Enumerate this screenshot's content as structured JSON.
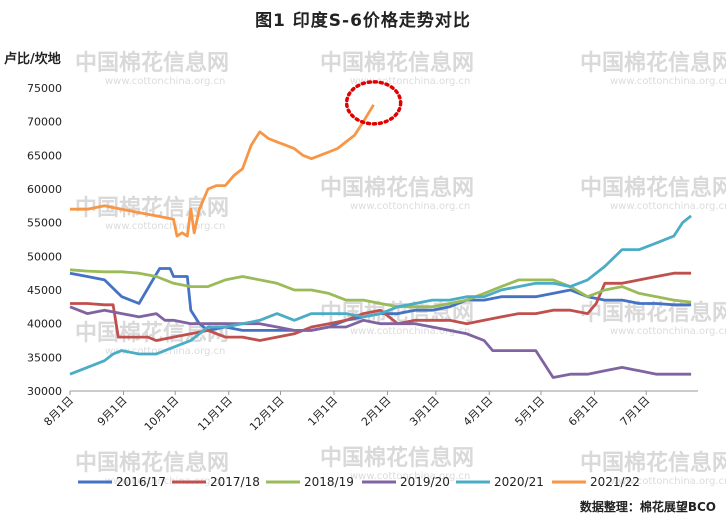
{
  "chart_data": {
    "type": "line",
    "title": "图1 印度S-6价格走势对比",
    "ylabel": "卢比/坎地",
    "xlabel": "",
    "ylim": [
      30000,
      75000
    ],
    "yticks": [
      30000,
      35000,
      40000,
      45000,
      50000,
      55000,
      60000,
      65000,
      70000,
      75000
    ],
    "x_tick_labels": [
      "8月1日",
      "9月1日",
      "10月1日",
      "11月1日",
      "12月1日",
      "1月1日",
      "2月1日",
      "3月1日",
      "4月1日",
      "5月1日",
      "6月1日",
      "7月1日"
    ],
    "x_tick_days": [
      0,
      31,
      61,
      92,
      122,
      153,
      184,
      212,
      243,
      273,
      304,
      334
    ],
    "xlim_days": [
      0,
      364
    ],
    "legend_position": "bottom",
    "source": "数据整理：棉花展望BCO",
    "watermark": {
      "text": "中国棉花信息网",
      "sub": "www.cottonchina.org.cn"
    },
    "annotation": "dotted red circle around latest 2021/22 price",
    "series": [
      {
        "name": "2016/17",
        "color": "#4472C4",
        "points": [
          [
            0,
            47500
          ],
          [
            10,
            47000
          ],
          [
            20,
            46500
          ],
          [
            30,
            44000
          ],
          [
            40,
            43000
          ],
          [
            48,
            46500
          ],
          [
            52,
            48200
          ],
          [
            58,
            48200
          ],
          [
            60,
            47000
          ],
          [
            68,
            47000
          ],
          [
            70,
            42000
          ],
          [
            75,
            40000
          ],
          [
            80,
            39000
          ],
          [
            90,
            39500
          ],
          [
            100,
            39000
          ],
          [
            110,
            39000
          ],
          [
            120,
            39000
          ],
          [
            130,
            39000
          ],
          [
            140,
            39000
          ],
          [
            150,
            39500
          ],
          [
            160,
            40500
          ],
          [
            170,
            41000
          ],
          [
            180,
            41500
          ],
          [
            190,
            41500
          ],
          [
            200,
            42000
          ],
          [
            210,
            42000
          ],
          [
            220,
            42500
          ],
          [
            230,
            43500
          ],
          [
            240,
            43500
          ],
          [
            250,
            44000
          ],
          [
            260,
            44000
          ],
          [
            270,
            44000
          ],
          [
            280,
            44500
          ],
          [
            290,
            45000
          ],
          [
            300,
            44000
          ],
          [
            310,
            43500
          ],
          [
            320,
            43500
          ],
          [
            330,
            43000
          ],
          [
            340,
            43000
          ],
          [
            350,
            42800
          ],
          [
            360,
            42800
          ]
        ]
      },
      {
        "name": "2017/18",
        "color": "#C0504D",
        "points": [
          [
            0,
            43000
          ],
          [
            10,
            43000
          ],
          [
            20,
            42800
          ],
          [
            25,
            42800
          ],
          [
            28,
            38000
          ],
          [
            35,
            38000
          ],
          [
            45,
            38000
          ],
          [
            50,
            37500
          ],
          [
            60,
            38000
          ],
          [
            70,
            38500
          ],
          [
            80,
            39000
          ],
          [
            90,
            38000
          ],
          [
            100,
            38000
          ],
          [
            110,
            37500
          ],
          [
            120,
            38000
          ],
          [
            130,
            38500
          ],
          [
            140,
            39500
          ],
          [
            150,
            40000
          ],
          [
            160,
            40500
          ],
          [
            170,
            41500
          ],
          [
            180,
            42000
          ],
          [
            190,
            40000
          ],
          [
            200,
            40500
          ],
          [
            210,
            40500
          ],
          [
            220,
            40500
          ],
          [
            230,
            40000
          ],
          [
            240,
            40500
          ],
          [
            250,
            41000
          ],
          [
            260,
            41500
          ],
          [
            270,
            41500
          ],
          [
            280,
            42000
          ],
          [
            290,
            42000
          ],
          [
            300,
            41500
          ],
          [
            305,
            43000
          ],
          [
            310,
            46000
          ],
          [
            320,
            46000
          ],
          [
            330,
            46500
          ],
          [
            340,
            47000
          ],
          [
            350,
            47500
          ],
          [
            360,
            47500
          ]
        ]
      },
      {
        "name": "2018/19",
        "color": "#9BBB59",
        "points": [
          [
            0,
            48000
          ],
          [
            10,
            47800
          ],
          [
            20,
            47700
          ],
          [
            30,
            47700
          ],
          [
            40,
            47500
          ],
          [
            50,
            47000
          ],
          [
            60,
            46000
          ],
          [
            70,
            45500
          ],
          [
            80,
            45500
          ],
          [
            90,
            46500
          ],
          [
            100,
            47000
          ],
          [
            110,
            46500
          ],
          [
            120,
            46000
          ],
          [
            130,
            45000
          ],
          [
            140,
            45000
          ],
          [
            150,
            44500
          ],
          [
            160,
            43500
          ],
          [
            170,
            43500
          ],
          [
            180,
            43000
          ],
          [
            190,
            42500
          ],
          [
            200,
            42500
          ],
          [
            210,
            42500
          ],
          [
            220,
            43000
          ],
          [
            230,
            43500
          ],
          [
            240,
            44500
          ],
          [
            250,
            45500
          ],
          [
            260,
            46500
          ],
          [
            270,
            46500
          ],
          [
            280,
            46500
          ],
          [
            290,
            45500
          ],
          [
            300,
            44000
          ],
          [
            310,
            45000
          ],
          [
            320,
            45500
          ],
          [
            330,
            44500
          ],
          [
            340,
            44000
          ],
          [
            350,
            43500
          ],
          [
            360,
            43200
          ]
        ]
      },
      {
        "name": "2019/20",
        "color": "#8064A2",
        "points": [
          [
            0,
            42500
          ],
          [
            10,
            41500
          ],
          [
            20,
            42000
          ],
          [
            30,
            41500
          ],
          [
            40,
            41000
          ],
          [
            50,
            41500
          ],
          [
            55,
            40500
          ],
          [
            60,
            40500
          ],
          [
            70,
            40000
          ],
          [
            80,
            40000
          ],
          [
            90,
            40000
          ],
          [
            100,
            40000
          ],
          [
            110,
            40000
          ],
          [
            120,
            39500
          ],
          [
            130,
            39000
          ],
          [
            140,
            39000
          ],
          [
            150,
            39500
          ],
          [
            160,
            39500
          ],
          [
            170,
            40500
          ],
          [
            180,
            40000
          ],
          [
            190,
            40000
          ],
          [
            200,
            40000
          ],
          [
            210,
            39500
          ],
          [
            220,
            39000
          ],
          [
            230,
            38500
          ],
          [
            240,
            37500
          ],
          [
            245,
            36000
          ],
          [
            260,
            36000
          ],
          [
            270,
            36000
          ],
          [
            275,
            34000
          ],
          [
            280,
            32000
          ],
          [
            290,
            32500
          ],
          [
            300,
            32500
          ],
          [
            310,
            33000
          ],
          [
            320,
            33500
          ],
          [
            330,
            33000
          ],
          [
            340,
            32500
          ],
          [
            350,
            32500
          ],
          [
            360,
            32500
          ]
        ]
      },
      {
        "name": "2020/21",
        "color": "#4BACC6",
        "points": [
          [
            0,
            32500
          ],
          [
            10,
            33500
          ],
          [
            20,
            34500
          ],
          [
            25,
            35500
          ],
          [
            30,
            36000
          ],
          [
            40,
            35500
          ],
          [
            50,
            35500
          ],
          [
            60,
            36500
          ],
          [
            70,
            37500
          ],
          [
            80,
            39500
          ],
          [
            90,
            39500
          ],
          [
            100,
            40000
          ],
          [
            110,
            40500
          ],
          [
            120,
            41500
          ],
          [
            130,
            40500
          ],
          [
            140,
            41500
          ],
          [
            150,
            41500
          ],
          [
            160,
            41500
          ],
          [
            170,
            41000
          ],
          [
            180,
            41500
          ],
          [
            190,
            42500
          ],
          [
            200,
            43000
          ],
          [
            210,
            43500
          ],
          [
            220,
            43500
          ],
          [
            230,
            44000
          ],
          [
            240,
            44000
          ],
          [
            250,
            45000
          ],
          [
            260,
            45500
          ],
          [
            270,
            46000
          ],
          [
            280,
            46000
          ],
          [
            290,
            45500
          ],
          [
            300,
            46500
          ],
          [
            310,
            48500
          ],
          [
            320,
            51000
          ],
          [
            330,
            51000
          ],
          [
            340,
            52000
          ],
          [
            350,
            53000
          ],
          [
            355,
            55000
          ],
          [
            360,
            56000
          ]
        ]
      },
      {
        "name": "2021/22",
        "color": "#F79646",
        "points": [
          [
            0,
            57000
          ],
          [
            10,
            57000
          ],
          [
            20,
            57500
          ],
          [
            30,
            57000
          ],
          [
            40,
            56500
          ],
          [
            50,
            56000
          ],
          [
            60,
            55500
          ],
          [
            62,
            53000
          ],
          [
            65,
            53500
          ],
          [
            68,
            53000
          ],
          [
            70,
            57000
          ],
          [
            72,
            53500
          ],
          [
            75,
            57000
          ],
          [
            80,
            60000
          ],
          [
            85,
            60500
          ],
          [
            90,
            60500
          ],
          [
            95,
            62000
          ],
          [
            100,
            63000
          ],
          [
            105,
            66500
          ],
          [
            110,
            68500
          ],
          [
            115,
            67500
          ],
          [
            120,
            67000
          ],
          [
            125,
            66500
          ],
          [
            130,
            66000
          ],
          [
            135,
            65000
          ],
          [
            140,
            64500
          ],
          [
            145,
            65000
          ],
          [
            150,
            65500
          ],
          [
            155,
            66000
          ],
          [
            160,
            67000
          ],
          [
            165,
            68000
          ],
          [
            170,
            70000
          ],
          [
            176,
            72500
          ]
        ]
      }
    ]
  }
}
